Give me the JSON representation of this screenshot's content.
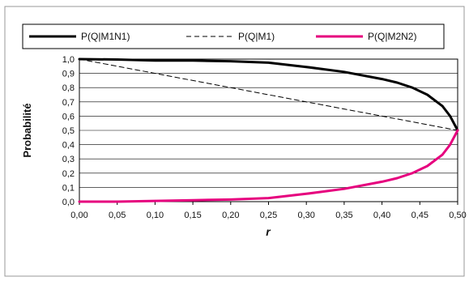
{
  "chart_data": {
    "type": "line",
    "title": "",
    "xlabel": "r",
    "ylabel": "Probabilité",
    "xlim": [
      0,
      0.5
    ],
    "ylim": [
      0,
      1
    ],
    "x_ticks": [
      "0,00",
      "0,05",
      "0,10",
      "0,15",
      "0,20",
      "0,25",
      "0,30",
      "0,35",
      "0,40",
      "0,45",
      "0,50"
    ],
    "y_ticks": [
      "0,0",
      "0,1",
      "0,2",
      "0,3",
      "0,4",
      "0,5",
      "0,6",
      "0,7",
      "0,8",
      "0,9",
      "1,0"
    ],
    "grid": true,
    "legend_position": "top",
    "x": [
      0,
      0.05,
      0.1,
      0.15,
      0.2,
      0.25,
      0.3,
      0.35,
      0.4,
      0.42,
      0.44,
      0.46,
      0.48,
      0.49,
      0.5
    ],
    "series": [
      {
        "name": "P(Q|M1N1)",
        "color": "#000000",
        "dash": "solid",
        "values": [
          1.0,
          0.997,
          0.99,
          0.99,
          0.985,
          0.975,
          0.945,
          0.91,
          0.86,
          0.835,
          0.8,
          0.75,
          0.67,
          0.6,
          0.5
        ]
      },
      {
        "name": "P(Q|M1)",
        "color": "#000000",
        "dash": "dashed",
        "values": [
          1.0,
          0.95,
          0.9,
          0.85,
          0.8,
          0.75,
          0.7,
          0.65,
          0.6,
          0.58,
          0.56,
          0.54,
          0.52,
          0.51,
          0.5
        ]
      },
      {
        "name": "P(Q|M2N2)",
        "color": "#e6007e",
        "dash": "solid",
        "values": [
          0.0,
          0.0,
          0.005,
          0.01,
          0.015,
          0.025,
          0.055,
          0.09,
          0.14,
          0.165,
          0.2,
          0.25,
          0.33,
          0.4,
          0.5
        ]
      }
    ]
  }
}
